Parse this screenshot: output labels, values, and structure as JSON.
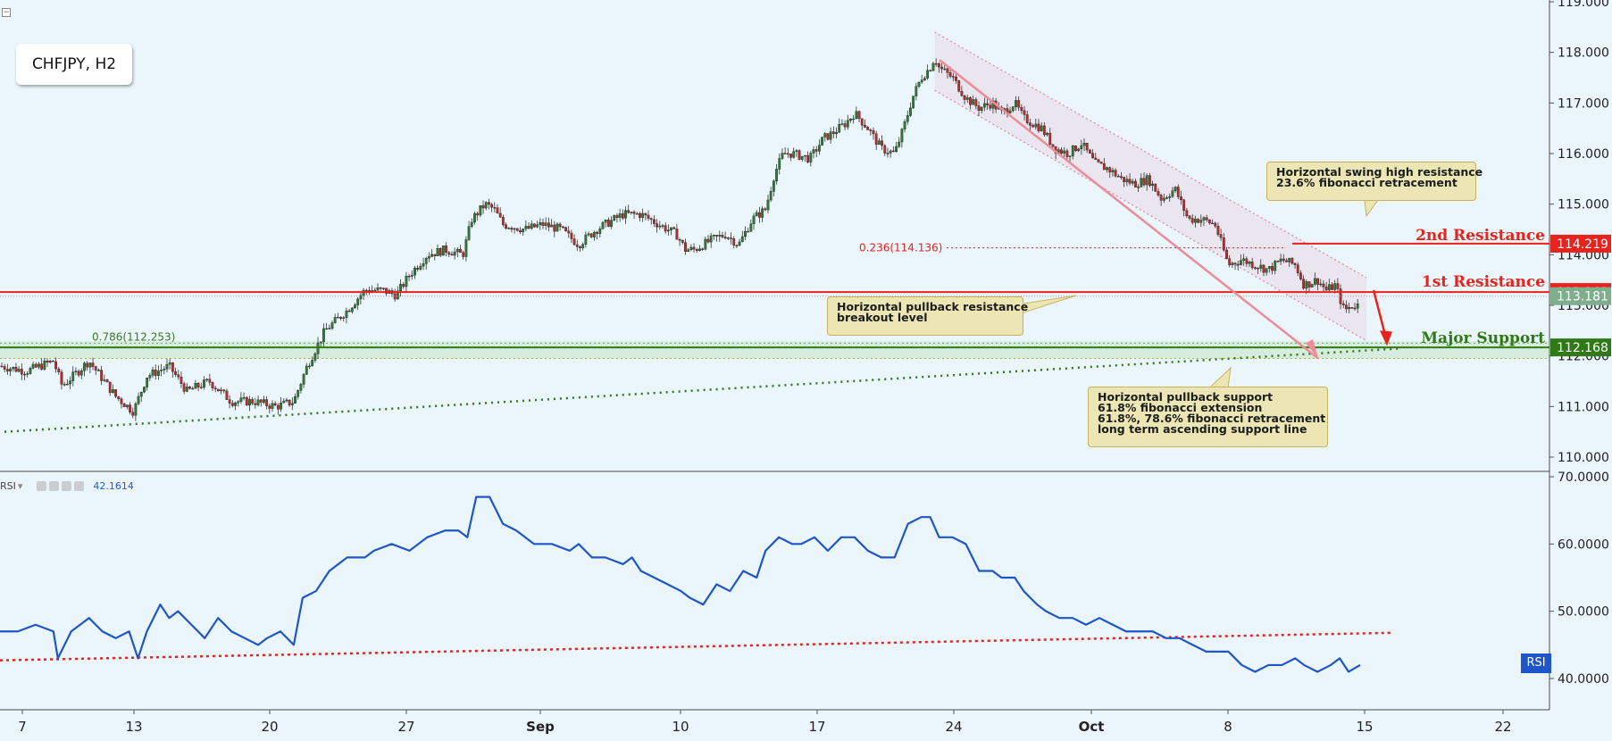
{
  "chart_data": [
    {
      "type": "candlestick",
      "title": "CHFJPY, H2",
      "y_axis_side": "right",
      "ylim": [
        109.7,
        119.0
      ],
      "y_ticks": [
        "119.000",
        "118.000",
        "117.000",
        "116.000",
        "115.000",
        "114.000",
        "113.000",
        "112.000",
        "111.000",
        "110.000"
      ],
      "x_ticks": [
        "7",
        "13",
        "20",
        "27",
        "Sep",
        "10",
        "17",
        "24",
        "Oct",
        "8",
        "15",
        "22"
      ],
      "close_path": [
        [
          0,
          111.8
        ],
        [
          30,
          111.7
        ],
        [
          60,
          111.9
        ],
        [
          70,
          111.4
        ],
        [
          100,
          111.9
        ],
        [
          130,
          111.2
        ],
        [
          150,
          110.9
        ],
        [
          165,
          111.6
        ],
        [
          190,
          111.8
        ],
        [
          210,
          111.3
        ],
        [
          235,
          111.5
        ],
        [
          260,
          111.1
        ],
        [
          285,
          111.1
        ],
        [
          310,
          111.0
        ],
        [
          330,
          111.1
        ],
        [
          345,
          111.8
        ],
        [
          365,
          112.5
        ],
        [
          390,
          112.9
        ],
        [
          410,
          113.3
        ],
        [
          430,
          113.3
        ],
        [
          445,
          113.2
        ],
        [
          460,
          113.6
        ],
        [
          480,
          114.0
        ],
        [
          500,
          114.1
        ],
        [
          520,
          114.0
        ],
        [
          530,
          114.7
        ],
        [
          545,
          115.0
        ],
        [
          555,
          114.9
        ],
        [
          565,
          114.6
        ],
        [
          590,
          114.5
        ],
        [
          610,
          114.6
        ],
        [
          630,
          114.5
        ],
        [
          650,
          114.2
        ],
        [
          670,
          114.5
        ],
        [
          690,
          114.7
        ],
        [
          700,
          114.8
        ],
        [
          720,
          114.8
        ],
        [
          740,
          114.6
        ],
        [
          760,
          114.4
        ],
        [
          770,
          114.1
        ],
        [
          780,
          114.1
        ],
        [
          800,
          114.3
        ],
        [
          815,
          114.4
        ],
        [
          830,
          114.2
        ],
        [
          845,
          114.7
        ],
        [
          860,
          114.9
        ],
        [
          870,
          115.6
        ],
        [
          880,
          116.0
        ],
        [
          890,
          116.0
        ],
        [
          910,
          115.9
        ],
        [
          925,
          116.3
        ],
        [
          935,
          116.4
        ],
        [
          950,
          116.6
        ],
        [
          960,
          116.8
        ],
        [
          975,
          116.5
        ],
        [
          990,
          116.1
        ],
        [
          1005,
          116.0
        ],
        [
          1015,
          116.5
        ],
        [
          1025,
          117.1
        ],
        [
          1035,
          117.5
        ],
        [
          1045,
          117.7
        ],
        [
          1050,
          117.9
        ],
        [
          1055,
          117.7
        ],
        [
          1070,
          117.5
        ],
        [
          1085,
          117.1
        ],
        [
          1100,
          116.9
        ],
        [
          1115,
          117.0
        ],
        [
          1125,
          116.8
        ],
        [
          1140,
          117.0
        ],
        [
          1150,
          116.7
        ],
        [
          1160,
          116.6
        ],
        [
          1170,
          116.5
        ],
        [
          1185,
          116.1
        ],
        [
          1200,
          116.0
        ],
        [
          1215,
          116.2
        ],
        [
          1230,
          115.8
        ],
        [
          1245,
          115.7
        ],
        [
          1260,
          115.5
        ],
        [
          1275,
          115.4
        ],
        [
          1290,
          115.5
        ],
        [
          1305,
          115.1
        ],
        [
          1320,
          115.3
        ],
        [
          1335,
          114.7
        ],
        [
          1350,
          114.7
        ],
        [
          1365,
          114.6
        ],
        [
          1380,
          113.8
        ],
        [
          1395,
          113.9
        ],
        [
          1410,
          113.8
        ],
        [
          1425,
          113.7
        ],
        [
          1440,
          113.9
        ],
        [
          1455,
          113.8
        ],
        [
          1465,
          113.4
        ],
        [
          1480,
          113.5
        ],
        [
          1490,
          113.3
        ],
        [
          1500,
          113.4
        ],
        [
          1510,
          112.9
        ],
        [
          1520,
          113.0
        ],
        [
          1530,
          113.0
        ]
      ],
      "levels": [
        {
          "name": "2nd Resistance",
          "value": 114.219,
          "color": "#e8231e"
        },
        {
          "name": "1st Resistance",
          "value": 113.263,
          "color": "#e8231e"
        },
        {
          "name": "Major Support",
          "value": 112.168,
          "color": "#2f7a16"
        }
      ],
      "last_price": 113.181,
      "fib_labels": [
        "0.236(114.136)",
        "0.786(112.253)"
      ],
      "level_texts": [
        "2nd Resistance",
        "1st Resistance",
        "Major Support"
      ],
      "badges": [
        "114.219",
        "113.263",
        "113.181",
        "112.168"
      ],
      "annotations": [
        {
          "lines": [
            "Horizontal swing high resistance",
            "23.6% fibonacci retracement"
          ]
        },
        {
          "lines": [
            "Horizontal pullback resistance",
            "breakout level"
          ]
        },
        {
          "lines": [
            "Horizontal pullback support",
            "61.8% fibonacci extension",
            "61.8%, 78.6% fibonacci retracement",
            "long term ascending support line"
          ]
        }
      ]
    },
    {
      "type": "line",
      "series": [
        {
          "name": "RSI",
          "color": "#1f55c9",
          "values": [
            [
              0,
              47
            ],
            [
              20,
              47
            ],
            [
              40,
              48
            ],
            [
              60,
              47
            ],
            [
              65,
              43
            ],
            [
              80,
              47
            ],
            [
              100,
              49
            ],
            [
              115,
              47
            ],
            [
              130,
              46
            ],
            [
              145,
              47
            ],
            [
              155,
              43
            ],
            [
              165,
              47
            ],
            [
              180,
              51
            ],
            [
              190,
              49
            ],
            [
              200,
              50
            ],
            [
              215,
              48
            ],
            [
              230,
              46
            ],
            [
              245,
              49
            ],
            [
              260,
              47
            ],
            [
              275,
              46
            ],
            [
              290,
              45
            ],
            [
              300,
              46
            ],
            [
              315,
              47
            ],
            [
              330,
              45
            ],
            [
              340,
              52
            ],
            [
              355,
              53
            ],
            [
              370,
              56
            ],
            [
              390,
              58
            ],
            [
              410,
              58
            ],
            [
              420,
              59
            ],
            [
              440,
              60
            ],
            [
              460,
              59
            ],
            [
              480,
              61
            ],
            [
              500,
              62
            ],
            [
              515,
              62
            ],
            [
              525,
              61
            ],
            [
              535,
              67
            ],
            [
              550,
              67
            ],
            [
              565,
              63
            ],
            [
              580,
              62
            ],
            [
              600,
              60
            ],
            [
              620,
              60
            ],
            [
              640,
              59
            ],
            [
              650,
              60
            ],
            [
              665,
              58
            ],
            [
              680,
              58
            ],
            [
              700,
              57
            ],
            [
              710,
              58
            ],
            [
              720,
              56
            ],
            [
              735,
              55
            ],
            [
              750,
              54
            ],
            [
              765,
              53
            ],
            [
              775,
              52
            ],
            [
              790,
              51
            ],
            [
              805,
              54
            ],
            [
              820,
              53
            ],
            [
              835,
              56
            ],
            [
              850,
              55
            ],
            [
              860,
              59
            ],
            [
              875,
              61
            ],
            [
              890,
              60
            ],
            [
              900,
              60
            ],
            [
              915,
              61
            ],
            [
              930,
              59
            ],
            [
              945,
              61
            ],
            [
              960,
              61
            ],
            [
              975,
              59
            ],
            [
              990,
              58
            ],
            [
              1005,
              58
            ],
            [
              1020,
              63
            ],
            [
              1035,
              64
            ],
            [
              1045,
              64
            ],
            [
              1055,
              61
            ],
            [
              1070,
              61
            ],
            [
              1085,
              60
            ],
            [
              1100,
              56
            ],
            [
              1115,
              56
            ],
            [
              1125,
              55
            ],
            [
              1140,
              55
            ],
            [
              1150,
              53
            ],
            [
              1165,
              51
            ],
            [
              1175,
              50
            ],
            [
              1190,
              49
            ],
            [
              1205,
              49
            ],
            [
              1220,
              48
            ],
            [
              1235,
              49
            ],
            [
              1250,
              48
            ],
            [
              1265,
              47
            ],
            [
              1280,
              47
            ],
            [
              1295,
              47
            ],
            [
              1310,
              46
            ],
            [
              1325,
              46
            ],
            [
              1340,
              45
            ],
            [
              1355,
              44
            ],
            [
              1370,
              44
            ],
            [
              1380,
              44
            ],
            [
              1395,
              42
            ],
            [
              1410,
              41
            ],
            [
              1425,
              42
            ],
            [
              1440,
              42
            ],
            [
              1455,
              43
            ],
            [
              1465,
              42
            ],
            [
              1480,
              41
            ],
            [
              1495,
              42
            ],
            [
              1505,
              43
            ],
            [
              1515,
              41
            ],
            [
              1528,
              42
            ]
          ]
        }
      ],
      "ylim": [
        37,
        71
      ],
      "y_ticks": [
        "70.0000",
        "60.0000",
        "50.0000",
        "40.0000"
      ],
      "label": "RSI",
      "value_label": "42.1614",
      "badge": "RSI"
    }
  ],
  "colors": {
    "background": "#eaf6fb",
    "resistance": "#e8231e",
    "support": "#2f7a16",
    "rsi": "#1f55c9"
  }
}
